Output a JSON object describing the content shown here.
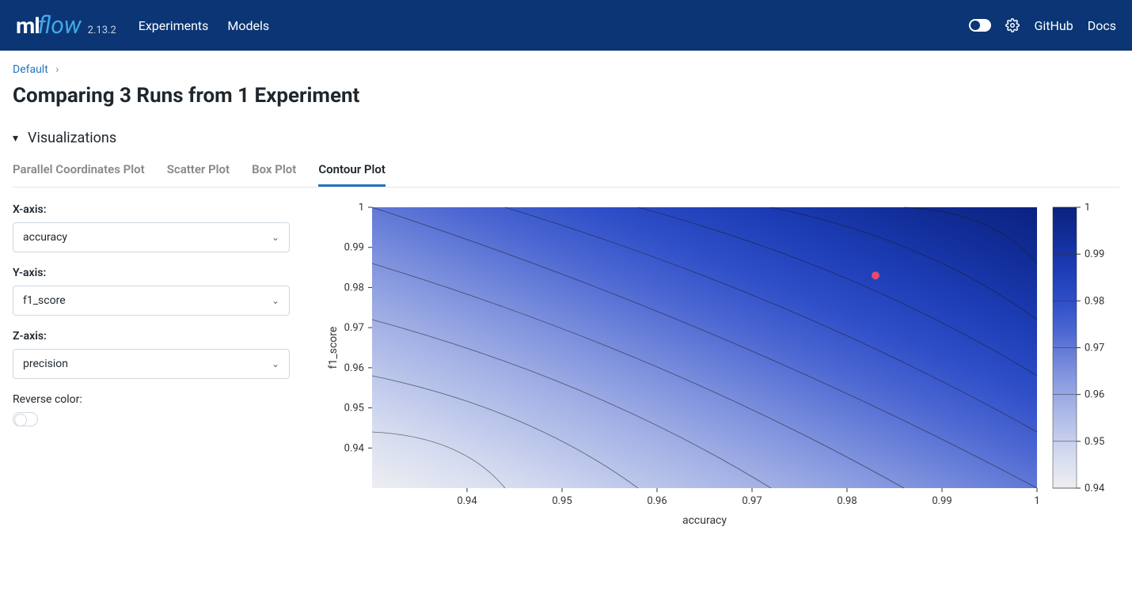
{
  "header": {
    "logo_ml": "ml",
    "logo_flow": "flow",
    "version": "2.13.2",
    "nav": [
      "Experiments",
      "Models"
    ],
    "right_links": [
      "GitHub",
      "Docs"
    ]
  },
  "breadcrumb": {
    "root": "Default"
  },
  "page_title": "Comparing 3 Runs from 1 Experiment",
  "section_title": "Visualizations",
  "tabs": [
    "Parallel Coordinates Plot",
    "Scatter Plot",
    "Box Plot",
    "Contour Plot"
  ],
  "active_tab_index": 3,
  "controls": {
    "x_label": "X-axis:",
    "x_value": "accuracy",
    "y_label": "Y-axis:",
    "y_value": "f1_score",
    "z_label": "Z-axis:",
    "z_value": "precision",
    "reverse_label": "Reverse color:"
  },
  "chart": {
    "type": "contour",
    "x_axis_label": "accuracy",
    "y_axis_label": "f1_score",
    "xlim": [
      0.93,
      1.0
    ],
    "ylim": [
      0.93,
      1.0
    ],
    "x_ticks": [
      0.94,
      0.95,
      0.96,
      0.97,
      0.98,
      0.99,
      1
    ],
    "y_ticks": [
      0.94,
      0.95,
      0.96,
      0.97,
      0.98,
      0.99,
      1
    ],
    "colorbar_ticks": [
      0.94,
      0.95,
      0.96,
      0.97,
      0.98,
      0.99,
      1
    ],
    "colorbar_colors_low_to_high": [
      "#eeeef2",
      "#d6dcf0",
      "#b8c3ea",
      "#99a8e3",
      "#7489db",
      "#4d68d2",
      "#2e4ec8",
      "#1d3db6",
      "#122e99",
      "#0a2280"
    ],
    "scatter_points": [
      {
        "x": 0.983,
        "y": 0.983,
        "color": "#e24a6e",
        "r": 5
      }
    ],
    "contour_line_color": "#1a1a1a",
    "contour_line_width": 0.8,
    "background_color": "#ffffff",
    "tick_fontsize": 13,
    "label_fontsize": 14
  }
}
